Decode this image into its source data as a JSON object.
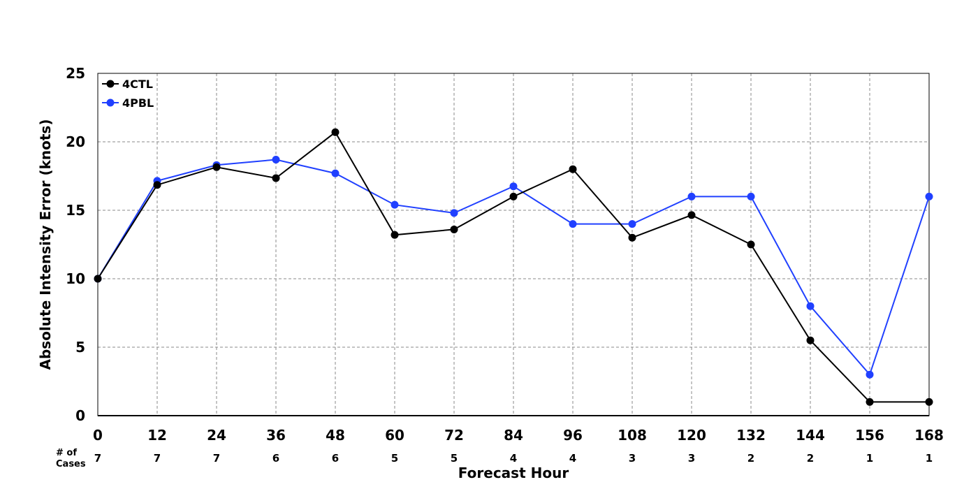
{
  "chart_data": {
    "type": "line",
    "title": "",
    "xlabel": "Forecast Hour",
    "ylabel": "Absolute Intensity Error (knots)",
    "x": [
      0,
      12,
      24,
      36,
      48,
      60,
      72,
      84,
      96,
      108,
      120,
      132,
      144,
      156,
      168
    ],
    "xlim": [
      0,
      168
    ],
    "ylim": [
      0,
      25
    ],
    "yticks": [
      0,
      5,
      10,
      15,
      20,
      25
    ],
    "grid": true,
    "legend_position": "top-left",
    "series": [
      {
        "name": "4CTL",
        "color": "#000000",
        "values": [
          10,
          16.85,
          18.15,
          17.35,
          20.7,
          13.2,
          13.6,
          16.0,
          18.0,
          13.0,
          14.65,
          12.5,
          5.5,
          1.0,
          1.0
        ]
      },
      {
        "name": "4PBL",
        "color": "#2040ff",
        "values": [
          10,
          17.15,
          18.3,
          18.7,
          17.7,
          15.4,
          14.8,
          16.75,
          14.0,
          14.0,
          16.0,
          16.0,
          8.0,
          3.0,
          16.0
        ]
      }
    ],
    "cases_label_line1": "# of",
    "cases_label_line2": "Cases",
    "cases": [
      7,
      7,
      7,
      6,
      6,
      5,
      5,
      4,
      4,
      3,
      3,
      2,
      2,
      1,
      1
    ]
  }
}
